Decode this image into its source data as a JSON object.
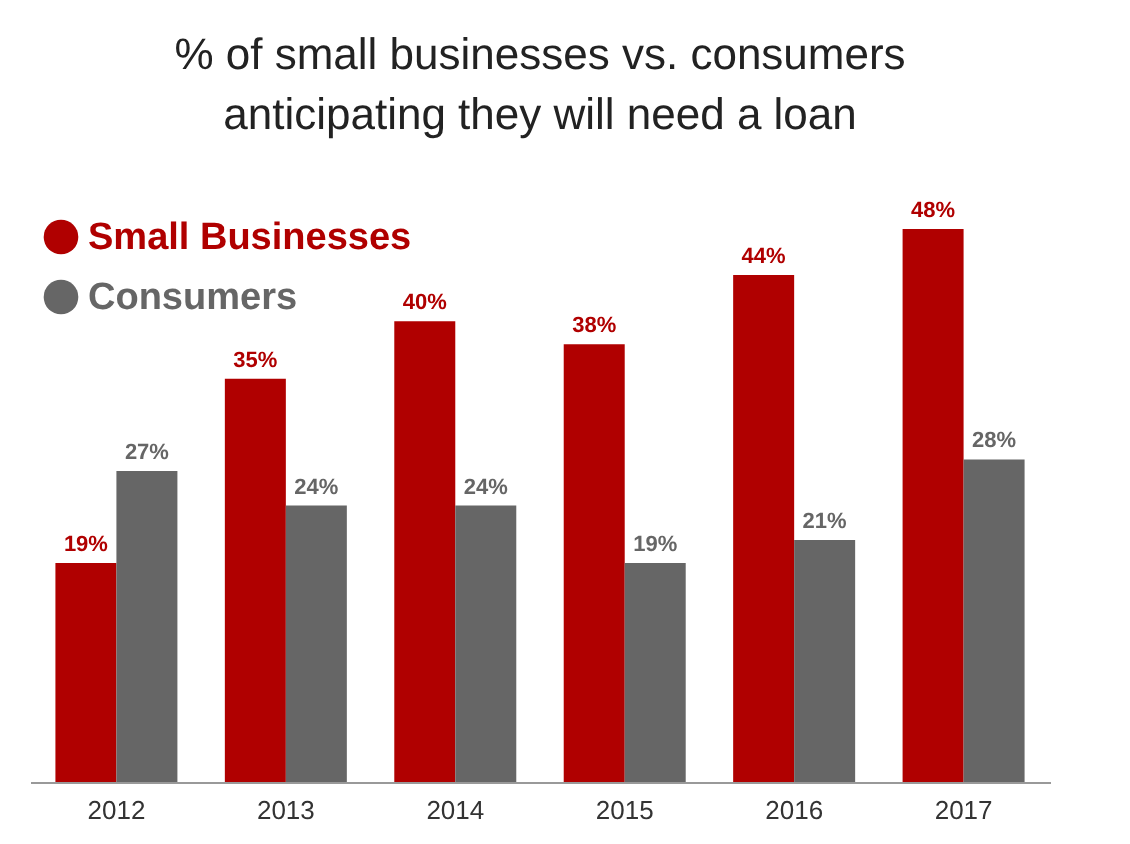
{
  "chart_data": {
    "type": "bar",
    "title": "% of small businesses vs. consumers anticipating they will need a loan",
    "categories": [
      "2012",
      "2013",
      "2014",
      "2015",
      "2016",
      "2017"
    ],
    "series": [
      {
        "name": "Small Businesses",
        "color": "#b00000",
        "values": [
          19,
          35,
          40,
          38,
          44,
          48
        ],
        "value_labels": [
          "19%",
          "35%",
          "40%",
          "38%",
          "44%",
          "48%"
        ]
      },
      {
        "name": "Consumers",
        "color": "#666666",
        "values": [
          27,
          24,
          24,
          19,
          21,
          28
        ],
        "value_labels": [
          "27%",
          "24%",
          "24%",
          "19%",
          "21%",
          "28%"
        ]
      }
    ],
    "legend": "top left",
    "grid": false,
    "marker": "circle"
  }
}
